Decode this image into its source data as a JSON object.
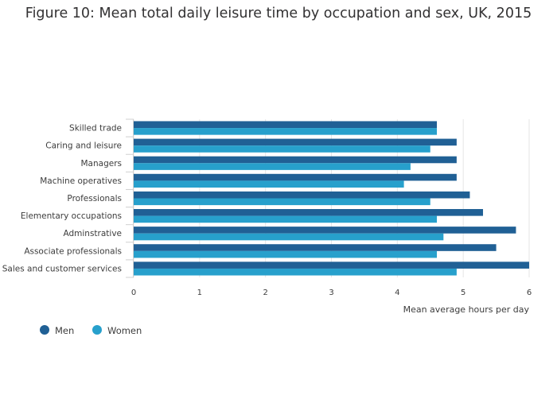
{
  "chart_data": {
    "type": "bar",
    "orientation": "horizontal",
    "title": "Figure 10: Mean total daily leisure time by occupation and sex, UK, 2015",
    "xlabel": "Mean average hours per day",
    "ylabel": "",
    "xlim": [
      0,
      6
    ],
    "xticks": [
      "0",
      "1",
      "2",
      "3",
      "4",
      "5",
      "6"
    ],
    "grid": "vertical",
    "legend": "bottom-left",
    "categories": [
      "Skilled trade",
      "Caring and leisure",
      "Managers",
      "Machine operatives",
      "Professionals",
      "Elementary occupations",
      "Adminstrative",
      "Associate professionals",
      "Sales and customer services"
    ],
    "series": [
      {
        "name": "Men",
        "color": "#206095",
        "values": [
          4.6,
          4.9,
          4.9,
          4.9,
          5.1,
          5.3,
          5.8,
          5.5,
          6.0
        ]
      },
      {
        "name": "Women",
        "color": "#27a0cc",
        "values": [
          4.6,
          4.5,
          4.2,
          4.1,
          4.5,
          4.6,
          4.7,
          4.6,
          4.9
        ]
      }
    ]
  }
}
